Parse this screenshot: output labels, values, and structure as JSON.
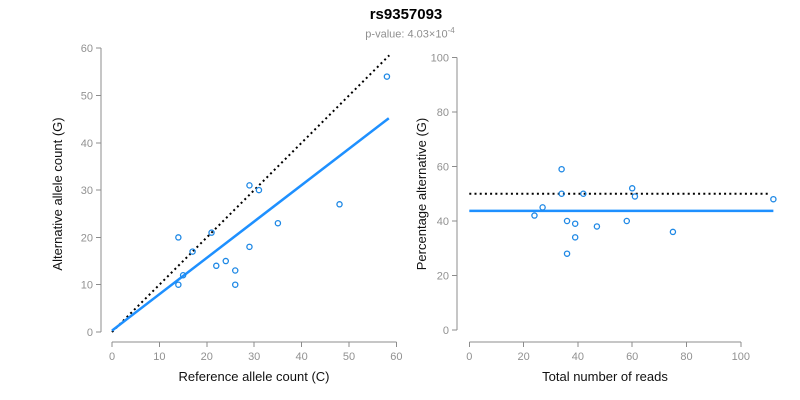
{
  "header": {
    "title": "rs9357093",
    "p_value_text": "p-value: 4.03×10",
    "p_value_exponent": "-4"
  },
  "colors": {
    "point_blue": "#1E88E5",
    "line_blue": "#1E90FF",
    "dotted_black": "#000000",
    "axis_gray": "#8C8C8C",
    "tick_label_gray": "#919191",
    "axis_title_black": "#111111",
    "subtitle_gray": "#8f8f8f"
  },
  "chart_data": [
    {
      "type": "scatter",
      "panel": "left",
      "xlabel": "Reference allele count (C)",
      "ylabel": "Alternative allele count (G)",
      "xlim": [
        0,
        60
      ],
      "ylim": [
        0,
        60
      ],
      "xticks": [
        0,
        10,
        20,
        30,
        40,
        50,
        60
      ],
      "yticks": [
        0,
        10,
        20,
        30,
        40,
        50,
        60
      ],
      "grid": false,
      "legend": "none",
      "marker": "open-circle",
      "points": [
        [
          14,
          20
        ],
        [
          17,
          17
        ],
        [
          21,
          21
        ],
        [
          29,
          31
        ],
        [
          31,
          30
        ],
        [
          58,
          54
        ],
        [
          15,
          12
        ],
        [
          14,
          10
        ],
        [
          22,
          14
        ],
        [
          24,
          15
        ],
        [
          29,
          18
        ],
        [
          35,
          23
        ],
        [
          48,
          27
        ],
        [
          26,
          13
        ],
        [
          26,
          10
        ]
      ],
      "lines": [
        {
          "name": "identity-line",
          "style": "dotted",
          "color": "black",
          "from": [
            0,
            0
          ],
          "to": [
            58.5,
            58.5
          ]
        },
        {
          "name": "fit-line",
          "style": "solid",
          "color": "blue",
          "from": [
            0,
            0.3
          ],
          "to": [
            58.4,
            45.2
          ]
        }
      ]
    },
    {
      "type": "scatter",
      "panel": "right",
      "xlabel": "Total number of reads",
      "ylabel": "Percentage alternative (G)",
      "xlim": [
        0,
        113
      ],
      "ylim": [
        0,
        100
      ],
      "xticks": [
        0,
        20,
        40,
        60,
        80,
        100
      ],
      "yticks": [
        0,
        20,
        40,
        60,
        80,
        100
      ],
      "grid": false,
      "legend": "none",
      "marker": "open-circle",
      "points": [
        [
          34,
          59
        ],
        [
          34,
          50
        ],
        [
          42,
          50
        ],
        [
          60,
          52
        ],
        [
          61,
          49
        ],
        [
          112,
          48
        ],
        [
          27,
          45
        ],
        [
          24,
          42
        ],
        [
          36,
          40
        ],
        [
          39,
          39
        ],
        [
          47,
          38
        ],
        [
          58,
          40
        ],
        [
          75,
          36
        ],
        [
          39,
          34
        ],
        [
          36,
          28
        ]
      ],
      "lines": [
        {
          "name": "fifty-percent-line",
          "style": "dotted",
          "color": "black",
          "from": [
            0,
            50
          ],
          "to": [
            110,
            50
          ]
        },
        {
          "name": "mean-percentage-line",
          "style": "solid",
          "color": "blue",
          "from": [
            0,
            43.7
          ],
          "to": [
            112,
            43.7
          ]
        }
      ]
    }
  ]
}
